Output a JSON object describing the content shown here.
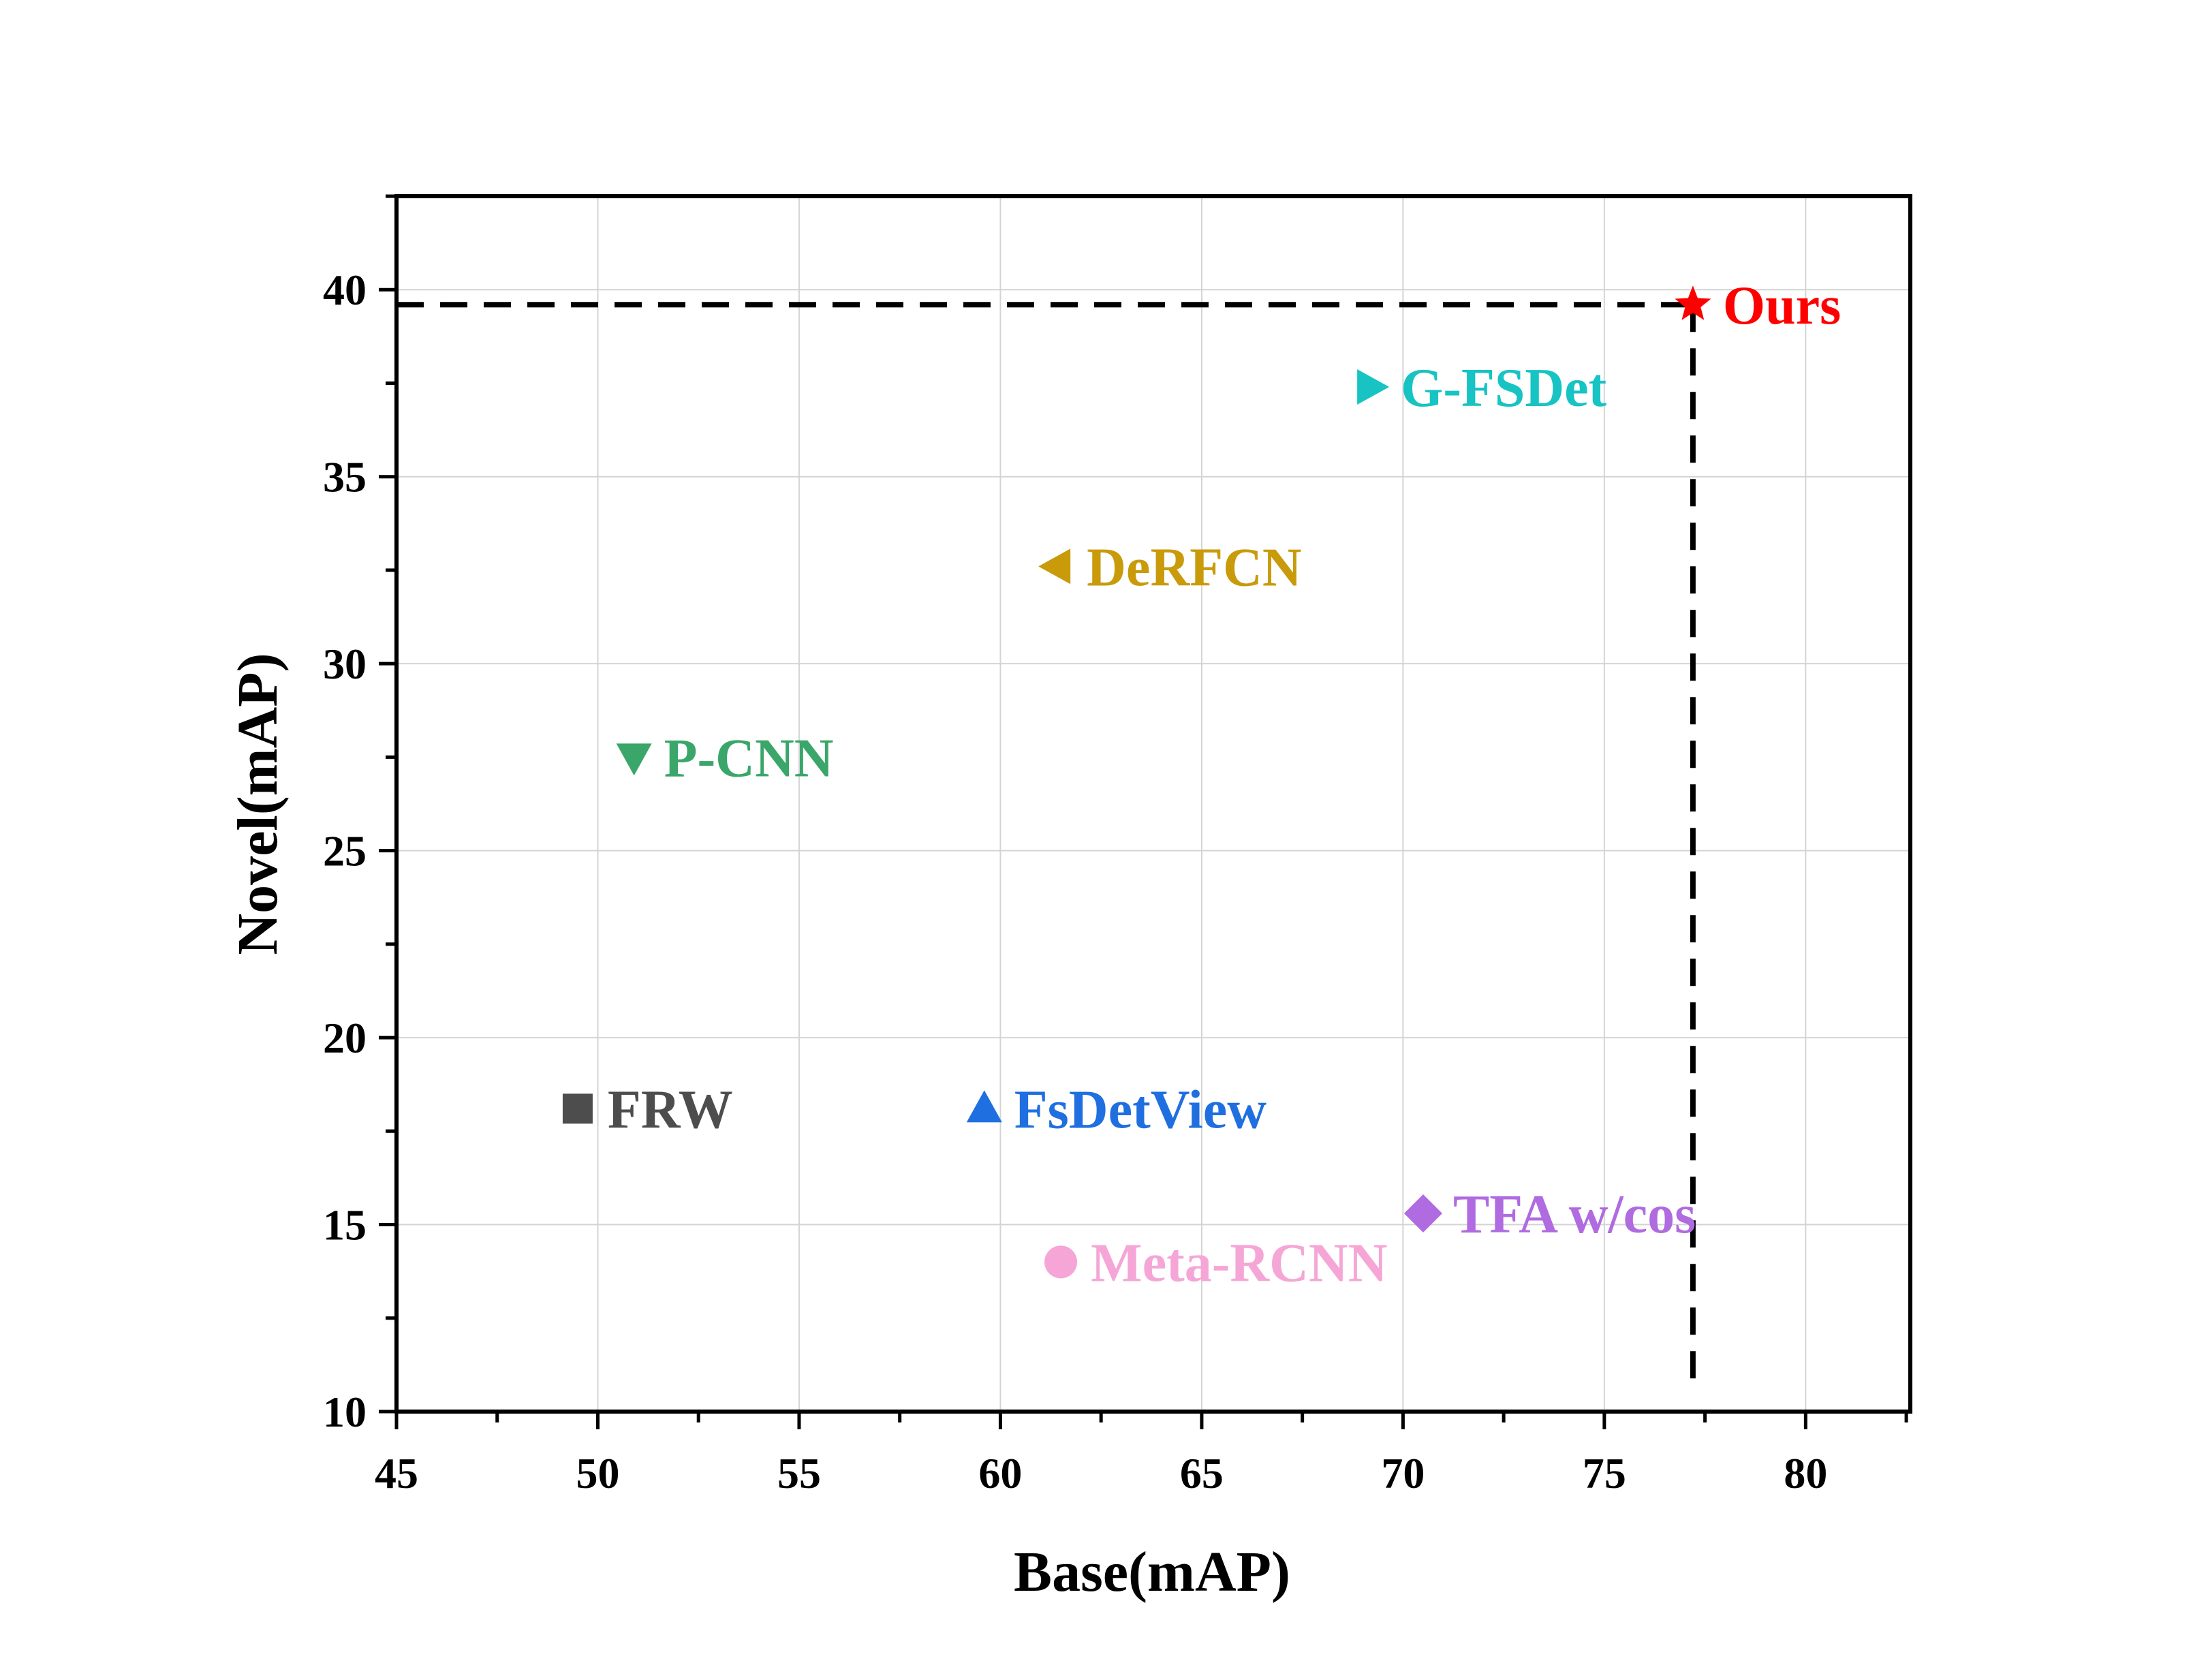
{
  "chart_data": {
    "type": "scatter",
    "xlabel": "Base(mAP)",
    "ylabel": "Novel(mAP)",
    "xlim": [
      45,
      82.6
    ],
    "ylim": [
      10,
      42.5
    ],
    "xticks": [
      45,
      50,
      55,
      60,
      65,
      70,
      75,
      80
    ],
    "yticks": [
      10,
      15,
      20,
      25,
      30,
      35,
      40
    ],
    "grid": true,
    "points": [
      {
        "label": "FRW",
        "x": 49.5,
        "y": 18.1,
        "marker": "square",
        "color": "#4d4d4d"
      },
      {
        "label": "FsDetView",
        "x": 59.6,
        "y": 18.1,
        "marker": "triangle-up",
        "color": "#1f6fe0"
      },
      {
        "label": "Meta-RCNN",
        "x": 61.5,
        "y": 14.0,
        "marker": "circle",
        "color": "#f5a6d6"
      },
      {
        "label": "TFA w/cos",
        "x": 70.5,
        "y": 15.3,
        "marker": "diamond",
        "color": "#b06be0"
      },
      {
        "label": "P-CNN",
        "x": 50.9,
        "y": 27.5,
        "marker": "triangle-down",
        "color": "#3aa66a"
      },
      {
        "label": "DeRFCN",
        "x": 61.4,
        "y": 32.6,
        "marker": "triangle-left",
        "color": "#c99a0a"
      },
      {
        "label": "G-FSDet",
        "x": 69.2,
        "y": 37.4,
        "marker": "triangle-right",
        "color": "#17c3c3"
      },
      {
        "label": "Ours",
        "x": 77.2,
        "y": 39.6,
        "marker": "star",
        "color": "#ff0000"
      }
    ],
    "reference_lines": {
      "x": 77.2,
      "y": 39.6,
      "style": "dashed",
      "color": "#000000"
    }
  }
}
